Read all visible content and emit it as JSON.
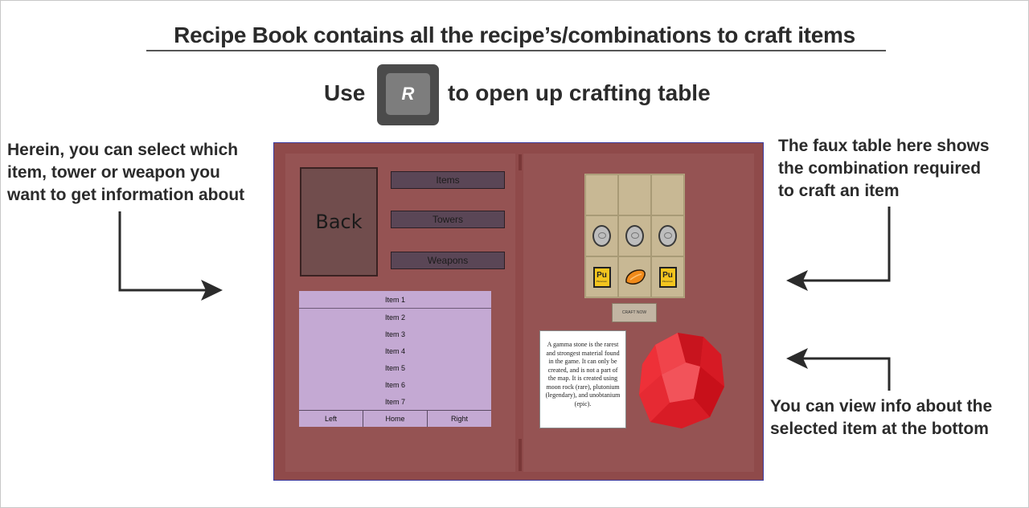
{
  "title": "Recipe Book contains all the recipe’s/combinations to craft items",
  "use_prefix": "Use",
  "key_label": "R",
  "use_suffix": "to open up crafting table",
  "notes": {
    "left": [
      "Herein, you can select which",
      "item, tower or weapon you",
      "want to get information about"
    ],
    "right_top": [
      "The faux table here shows",
      "the combination required",
      "to craft an item"
    ],
    "right_bottom": [
      "You can view info about the",
      "selected item at the bottom"
    ]
  },
  "book": {
    "back_label": "Back",
    "categories": [
      "Items",
      "Towers",
      "Weapons"
    ],
    "items": [
      "Item 1",
      "Item 2",
      "Item 3",
      "Item 4",
      "Item 5",
      "Item 6",
      "Item 7"
    ],
    "pager": [
      "Left",
      "Home",
      "Right"
    ],
    "grid": {
      "row2": [
        "moon-rock-icon",
        "moon-rock-icon",
        "moon-rock-icon"
      ],
      "row3": [
        "plutonium-icon",
        "unobtanium-icon",
        "plutonium-icon"
      ],
      "pu_symbol": "Pu",
      "pu_name": "Plutonium"
    },
    "craft_label": "CRAFT NOW",
    "info_text": "A gamma stone is the rarest and strongest material found in the game. It can only be created, and is not a part of the map. It is created using moon rock (rare), plutonium (legendary), and unobtanium (epic).",
    "selected_item_icon": "gamma-stone-icon"
  },
  "colors": {
    "book": "#8f4a4a",
    "page": "#955353",
    "list": "#c4a9d3",
    "category_button": "#5a4656",
    "gem": "#e3222c"
  }
}
